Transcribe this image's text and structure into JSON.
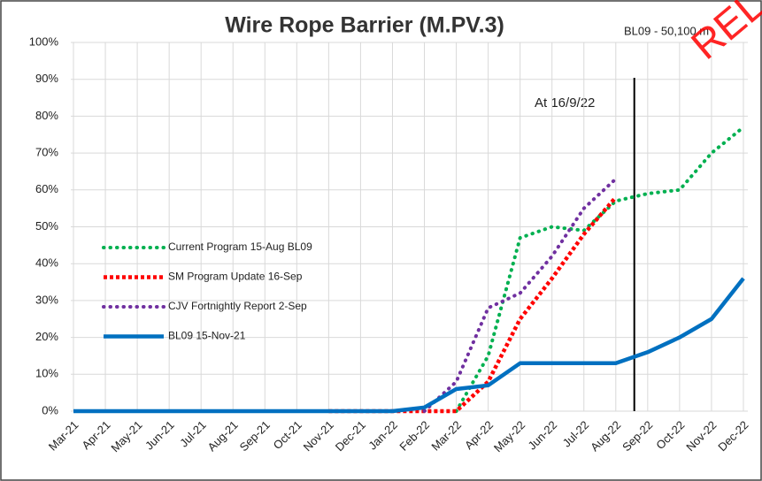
{
  "chart_data": {
    "type": "line",
    "title": "Wire Rope Barrier (M.PV.3)",
    "annotations": [
      "BL09 - 50,100 m",
      "At 16/9/22"
    ],
    "watermark": "RELEASED",
    "categories": [
      "Mar-21",
      "Apr-21",
      "May-21",
      "Jun-21",
      "Jul-21",
      "Aug-21",
      "Sep-21",
      "Oct-21",
      "Nov-21",
      "Dec-21",
      "Jan-22",
      "Feb-22",
      "Mar-22",
      "Apr-22",
      "May-22",
      "Jun-22",
      "Jul-22",
      "Aug-22",
      "Sep-22",
      "Oct-22",
      "Nov-22",
      "Dec-22"
    ],
    "series": [
      {
        "name": "Current Program 15-Aug BL09",
        "color": "#00b050",
        "style": "dotted",
        "values": [
          null,
          null,
          null,
          null,
          null,
          null,
          null,
          null,
          null,
          null,
          null,
          null,
          0,
          15,
          47,
          50,
          49,
          57,
          59,
          60,
          70,
          77
        ]
      },
      {
        "name": "SM Program Update 16-Sep",
        "color": "#ff0000",
        "style": "dashed",
        "values": [
          null,
          null,
          null,
          null,
          null,
          null,
          null,
          null,
          0,
          0,
          0,
          0,
          0,
          8,
          25,
          36,
          48,
          58,
          null,
          null,
          null,
          null
        ]
      },
      {
        "name": "CJV Fortnightly Report 2-Sep",
        "color": "#7030a0",
        "style": "dotted",
        "values": [
          null,
          null,
          null,
          null,
          null,
          null,
          null,
          null,
          null,
          null,
          null,
          0,
          8,
          28,
          32,
          42,
          55,
          63,
          null,
          null,
          null,
          null
        ]
      },
      {
        "name": "BL09 15-Nov-21",
        "color": "#0070c0",
        "style": "solid",
        "values": [
          0,
          0,
          0,
          0,
          0,
          0,
          0,
          0,
          0,
          0,
          0,
          1,
          6,
          7,
          13,
          13,
          13,
          13,
          16,
          20,
          25,
          36
        ]
      }
    ],
    "ylim": [
      0,
      100
    ],
    "yticks": [
      {
        "value": 0,
        "label": "0%"
      },
      {
        "value": 10,
        "label": "10%"
      },
      {
        "value": 20,
        "label": "20%"
      },
      {
        "value": 30,
        "label": "30%"
      },
      {
        "value": 40,
        "label": "40%"
      },
      {
        "value": 50,
        "label": "50%"
      },
      {
        "value": 60,
        "label": "60%"
      },
      {
        "value": 70,
        "label": "70%"
      },
      {
        "value": 80,
        "label": "80%"
      },
      {
        "value": 90,
        "label": "90%"
      },
      {
        "value": 100,
        "label": "100%"
      }
    ],
    "grid": true,
    "legend": "left"
  }
}
